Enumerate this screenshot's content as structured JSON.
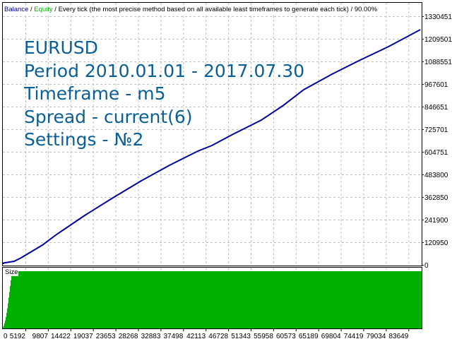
{
  "header": {
    "balance_label": "Balance",
    "separator": " / ",
    "equity_label": "Equity",
    "description": " / Every tick (the most precise method based on all available least timeframes to generate each tick) / 90.00%"
  },
  "overlay_text": [
    "EURUSD",
    "Period 2010.01.01 - 2017.07.30",
    "Timeframe - m5",
    "Spread - current(6)",
    "Settings - №2"
  ],
  "colors": {
    "balance": "#00009c",
    "equity": "#00b000",
    "size_fill": "#00b000",
    "overlay_text": "#0a6096",
    "grid": "#c0c0c0"
  },
  "chart_data": [
    {
      "type": "line",
      "series": [
        {
          "name": "Balance",
          "points": [
            [
              706,
              10000
            ],
            [
              2877,
              18900
            ],
            [
              4324,
              37800
            ],
            [
              8665,
              105800
            ],
            [
              11559,
              162500
            ],
            [
              17347,
              264600
            ],
            [
              23135,
              359100
            ],
            [
              28923,
              449800
            ],
            [
              34711,
              533000
            ],
            [
              40499,
              608600
            ],
            [
              43393,
              638800
            ],
            [
              47734,
              699300
            ],
            [
              53522,
              774900
            ],
            [
              57863,
              850400
            ],
            [
              62204,
              937400
            ],
            [
              67992,
              1020500
            ],
            [
              73780,
              1096100
            ],
            [
              79568,
              1167900
            ],
            [
              86080,
              1258600
            ]
          ]
        }
      ],
      "x_ticks": [
        "0",
        "5192",
        "9807",
        "14422",
        "19037",
        "23653",
        "28268",
        "32883",
        "37498",
        "42113",
        "46728",
        "51343",
        "55958",
        "60573",
        "65189",
        "69804",
        "74419",
        "79034",
        "83649"
      ],
      "y_ticks": [
        "0",
        "120950",
        "241900",
        "362850",
        "483800",
        "604751",
        "725701",
        "846651",
        "967601",
        "1088551",
        "1209501",
        "1330451"
      ],
      "ylim": [
        0,
        1330451
      ],
      "grid": true
    },
    {
      "type": "area",
      "title": "Size",
      "relative_values": [
        0.02,
        0.05,
        0.09,
        0.14,
        0.2,
        0.27,
        0.35,
        0.44,
        0.54,
        0.64,
        0.74,
        0.84,
        0.92,
        1.0,
        1.0
      ],
      "grid": true
    }
  ]
}
